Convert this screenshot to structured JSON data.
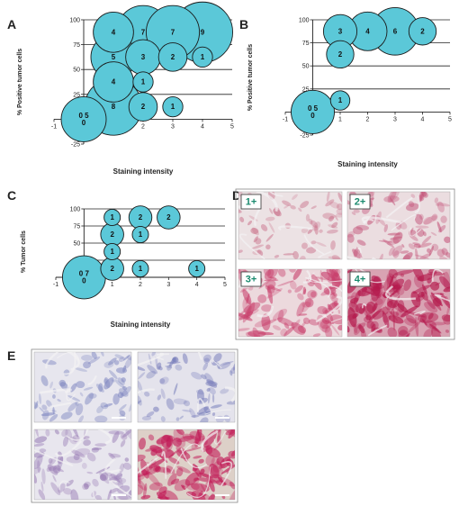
{
  "panel_letters": {
    "a": "A",
    "b": "B",
    "c": "C",
    "d": "D",
    "e": "E"
  },
  "chart_data": [
    {
      "panel": "A",
      "type": "scatter",
      "xlabel": "Staining intensity",
      "ylabel": "% Positive tumor cells",
      "xticks": [
        "-1",
        "0",
        "1",
        "2",
        "3",
        "4",
        "5"
      ],
      "yticks": [
        "-25",
        "0",
        "25",
        "50",
        "75",
        "100"
      ],
      "xlim": [
        -1,
        5
      ],
      "ylim": [
        -25,
        100
      ],
      "gridlines_y": [
        25,
        50,
        75,
        100
      ],
      "bubble_color": "#5bc8d8",
      "points": [
        {
          "x": 0,
          "y": 0,
          "n": 5,
          "label": "0 5\n0"
        },
        {
          "x": 1,
          "y": 12.5,
          "n": 8,
          "label": "8"
        },
        {
          "x": 1,
          "y": 37.5,
          "n": 4,
          "label": "4"
        },
        {
          "x": 1,
          "y": 62.5,
          "n": 5,
          "label": "5"
        },
        {
          "x": 1,
          "y": 87.5,
          "n": 4,
          "label": "4"
        },
        {
          "x": 2,
          "y": 12.5,
          "n": 2,
          "label": "2"
        },
        {
          "x": 2,
          "y": 37.5,
          "n": 1,
          "label": "1"
        },
        {
          "x": 2,
          "y": 62.5,
          "n": 3,
          "label": "3"
        },
        {
          "x": 2,
          "y": 87.5,
          "n": 7,
          "label": "7"
        },
        {
          "x": 3,
          "y": 12.5,
          "n": 1,
          "label": "1"
        },
        {
          "x": 3,
          "y": 62.5,
          "n": 2,
          "label": "2"
        },
        {
          "x": 3,
          "y": 87.5,
          "n": 7,
          "label": "7"
        },
        {
          "x": 4,
          "y": 62.5,
          "n": 1,
          "label": "1"
        },
        {
          "x": 4,
          "y": 87.5,
          "n": 9,
          "label": "9"
        }
      ]
    },
    {
      "panel": "B",
      "type": "scatter",
      "xlabel": "Staining intensity",
      "ylabel": "% Positive tumor cells",
      "xticks": [
        "-1",
        "0",
        "1",
        "2",
        "3",
        "4",
        "5"
      ],
      "yticks": [
        "-25",
        "0",
        "25",
        "50",
        "75",
        "100"
      ],
      "xlim": [
        -1,
        5
      ],
      "ylim": [
        -25,
        100
      ],
      "gridlines_y": [
        25,
        50,
        75,
        100
      ],
      "bubble_color": "#5bc8d8",
      "points": [
        {
          "x": 0,
          "y": 0,
          "n": 5,
          "label": "0 5\n0"
        },
        {
          "x": 1,
          "y": 12.5,
          "n": 1,
          "label": "1"
        },
        {
          "x": 1,
          "y": 62.5,
          "n": 2,
          "label": "2"
        },
        {
          "x": 1,
          "y": 87.5,
          "n": 3,
          "label": "3"
        },
        {
          "x": 2,
          "y": 87.5,
          "n": 4,
          "label": "4"
        },
        {
          "x": 3,
          "y": 87.5,
          "n": 6,
          "label": "6"
        },
        {
          "x": 4,
          "y": 87.5,
          "n": 2,
          "label": "2"
        }
      ]
    },
    {
      "panel": "C",
      "type": "scatter",
      "xlabel": "Staining intensity",
      "ylabel": "% Tumor cells",
      "xticks": [
        "-1",
        "0",
        "1",
        "2",
        "3",
        "4",
        "5"
      ],
      "yticks": [
        "-25",
        "0",
        "25",
        "50",
        "75",
        "100"
      ],
      "xlim": [
        -1,
        5
      ],
      "ylim": [
        -25,
        100
      ],
      "gridlines_y": [
        25,
        50,
        75,
        100
      ],
      "bubble_color": "#5bc8d8",
      "points": [
        {
          "x": 0,
          "y": 0,
          "n": 7,
          "label": "0 7\n0"
        },
        {
          "x": 1,
          "y": 12.5,
          "n": 2,
          "label": "2"
        },
        {
          "x": 1,
          "y": 37.5,
          "n": 1,
          "label": "1"
        },
        {
          "x": 1,
          "y": 62.5,
          "n": 2,
          "label": "2"
        },
        {
          "x": 1,
          "y": 87.5,
          "n": 1,
          "label": "1"
        },
        {
          "x": 2,
          "y": 12.5,
          "n": 1,
          "label": "1"
        },
        {
          "x": 2,
          "y": 62.5,
          "n": 1,
          "label": "1"
        },
        {
          "x": 2,
          "y": 87.5,
          "n": 2,
          "label": "2"
        },
        {
          "x": 3,
          "y": 87.5,
          "n": 2,
          "label": "2"
        },
        {
          "x": 4,
          "y": 12.5,
          "n": 1,
          "label": "1"
        }
      ]
    }
  ],
  "panel_d": {
    "tiles": [
      {
        "label": "1+",
        "level": 1,
        "base": "#ece2e4",
        "tint": "#c86b86"
      },
      {
        "label": "2+",
        "level": 2,
        "base": "#ebdde0",
        "tint": "#c4557a"
      },
      {
        "label": "3+",
        "level": 3,
        "base": "#ecd9dd",
        "tint": "#c83e6b"
      },
      {
        "label": "4+",
        "level": 4,
        "base": "#d9a3b3",
        "tint": "#b4184c"
      }
    ]
  },
  "panel_e": {
    "tiles": [
      {
        "stain": "none",
        "base": "#e7e6ee",
        "tint": "#7b83bf"
      },
      {
        "stain": "none",
        "base": "#e4e3ec",
        "tint": "#7278b8"
      },
      {
        "stain": "light",
        "base": "#e8e6ee",
        "tint": "#9a7eb6"
      },
      {
        "stain": "strong",
        "base": "#ddd0c8",
        "tint": "#c21a57"
      }
    ]
  }
}
